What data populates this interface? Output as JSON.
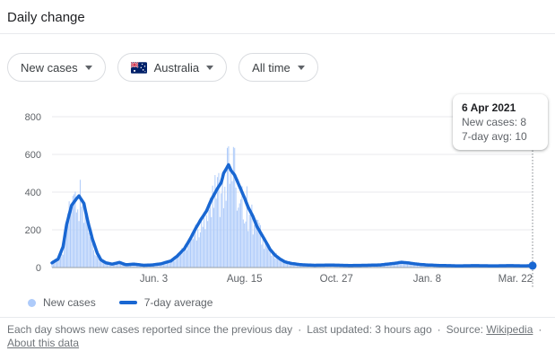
{
  "header": {
    "title": "Daily change"
  },
  "filters": {
    "metric": {
      "label": "New cases"
    },
    "region": {
      "label": "Australia",
      "flag": "australia"
    },
    "range": {
      "label": "All time"
    }
  },
  "tooltip": {
    "date": "6 Apr 2021",
    "new_cases_line": "New cases: 8",
    "avg_line": "7-day avg: 10"
  },
  "legend": {
    "new_cases_label": "New cases",
    "avg_label": "7-day average"
  },
  "footer": {
    "description": "Each day shows new cases reported since the previous day",
    "sep": "·",
    "updated": "Last updated: 3 hours ago",
    "source_label": "Source:",
    "source_link": "Wikipedia",
    "about_link": "About this data"
  },
  "chart_data": {
    "type": "bar",
    "title": "Daily change — new COVID-19 cases, Australia, all time",
    "ylim": [
      0,
      800
    ],
    "yticks": [
      0,
      200,
      400,
      600,
      800
    ],
    "grid": true,
    "days_total": 392,
    "xticks": [
      {
        "day": 83,
        "label": "Jun. 3"
      },
      {
        "day": 157,
        "label": "Aug. 15"
      },
      {
        "day": 232,
        "label": "Oct. 27"
      },
      {
        "day": 306,
        "label": "Jan. 8"
      },
      {
        "day": 378,
        "label": "Mar. 22"
      }
    ],
    "series": [
      {
        "name": "New cases",
        "type": "bar",
        "color": "#aecbfa",
        "derivation": "7-day-average envelope multiplied by deterministic daily jitter",
        "jitter": {
          "min": 0.6,
          "range": 0.7
        }
      },
      {
        "name": "7-day average",
        "type": "line",
        "color": "#1967d2",
        "points": [
          [
            0,
            25
          ],
          [
            5,
            45
          ],
          [
            9,
            110
          ],
          [
            12,
            230
          ],
          [
            16,
            330
          ],
          [
            20,
            365
          ],
          [
            22,
            380
          ],
          [
            26,
            340
          ],
          [
            29,
            250
          ],
          [
            33,
            150
          ],
          [
            37,
            75
          ],
          [
            40,
            40
          ],
          [
            44,
            25
          ],
          [
            49,
            18
          ],
          [
            55,
            27
          ],
          [
            60,
            15
          ],
          [
            67,
            18
          ],
          [
            75,
            12
          ],
          [
            82,
            14
          ],
          [
            89,
            20
          ],
          [
            97,
            35
          ],
          [
            102,
            60
          ],
          [
            108,
            100
          ],
          [
            113,
            155
          ],
          [
            117,
            205
          ],
          [
            121,
            250
          ],
          [
            126,
            300
          ],
          [
            130,
            360
          ],
          [
            135,
            420
          ],
          [
            138,
            450
          ],
          [
            140,
            500
          ],
          [
            144,
            545
          ],
          [
            146,
            515
          ],
          [
            149,
            490
          ],
          [
            153,
            430
          ],
          [
            157,
            370
          ],
          [
            160,
            320
          ],
          [
            164,
            270
          ],
          [
            167,
            220
          ],
          [
            171,
            175
          ],
          [
            175,
            130
          ],
          [
            178,
            95
          ],
          [
            182,
            65
          ],
          [
            186,
            45
          ],
          [
            190,
            30
          ],
          [
            195,
            22
          ],
          [
            203,
            15
          ],
          [
            214,
            12
          ],
          [
            228,
            13
          ],
          [
            243,
            11
          ],
          [
            257,
            12
          ],
          [
            268,
            14
          ],
          [
            279,
            22
          ],
          [
            285,
            28
          ],
          [
            290,
            25
          ],
          [
            298,
            18
          ],
          [
            305,
            14
          ],
          [
            316,
            11
          ],
          [
            331,
            9
          ],
          [
            345,
            10
          ],
          [
            360,
            9
          ],
          [
            374,
            10
          ],
          [
            385,
            9
          ],
          [
            392,
            10
          ]
        ]
      }
    ],
    "highlight": {
      "day": 392,
      "date": "6 Apr 2021",
      "new_cases": 8,
      "avg": 10
    }
  }
}
